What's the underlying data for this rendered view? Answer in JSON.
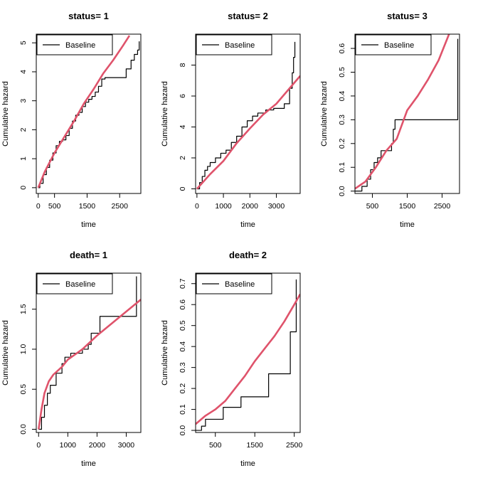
{
  "chart_data": [
    {
      "type": "line",
      "title": "status= 1",
      "xlabel": "time",
      "ylabel": "Cumulative hazard",
      "xlim": [
        -60,
        3150
      ],
      "ylim": [
        -0.2,
        5.3
      ],
      "xticks": [
        0,
        500,
        1500,
        2500
      ],
      "yticks": [
        0,
        1,
        2,
        3,
        4,
        5
      ],
      "legend": {
        "position": "top-left",
        "entries": [
          "Baseline"
        ]
      },
      "series": [
        {
          "name": "Baseline",
          "style": "step",
          "color": "#000000",
          "x": [
            0,
            50,
            150,
            250,
            350,
            450,
            550,
            650,
            750,
            850,
            950,
            1050,
            1150,
            1250,
            1350,
            1450,
            1550,
            1650,
            1750,
            1850,
            1950,
            2050,
            2150,
            2250,
            2450,
            2700,
            2850,
            2950,
            3050,
            3100
          ],
          "y": [
            0,
            0.15,
            0.45,
            0.7,
            0.95,
            1.2,
            1.45,
            1.6,
            1.65,
            1.8,
            2.05,
            2.3,
            2.5,
            2.6,
            2.8,
            2.95,
            3.05,
            3.15,
            3.3,
            3.5,
            3.75,
            3.8,
            3.8,
            3.8,
            3.8,
            4.1,
            4.4,
            4.6,
            4.75,
            5.05
          ]
        },
        {
          "style": "smooth",
          "color": "#DF536B",
          "x": [
            0,
            200,
            500,
            800,
            1100,
            1400,
            1700,
            2000,
            2300,
            2600,
            2800
          ],
          "y": [
            0,
            0.55,
            1.2,
            1.75,
            2.3,
            2.9,
            3.4,
            3.95,
            4.4,
            4.9,
            5.25
          ]
        }
      ]
    },
    {
      "type": "line",
      "title": "status= 2",
      "xlabel": "time",
      "ylabel": "Cumulative hazard",
      "xlim": [
        -50,
        3900
      ],
      "ylim": [
        -0.3,
        10
      ],
      "xticks": [
        0,
        1000,
        2000,
        3000
      ],
      "yticks": [
        0,
        2,
        4,
        6,
        8
      ],
      "legend": {
        "position": "top-left",
        "entries": [
          "Baseline"
        ]
      },
      "series": [
        {
          "name": "Baseline",
          "style": "step",
          "color": "#000000",
          "x": [
            0,
            100,
            200,
            300,
            400,
            500,
            700,
            900,
            1100,
            1300,
            1500,
            1700,
            1900,
            2100,
            2300,
            2600,
            2900,
            3300,
            3500,
            3600,
            3650,
            3700
          ],
          "y": [
            0,
            0.4,
            0.8,
            1.2,
            1.45,
            1.7,
            2.0,
            2.3,
            2.5,
            3.0,
            3.4,
            4.0,
            4.4,
            4.7,
            4.9,
            5.1,
            5.2,
            5.5,
            6.5,
            7.5,
            8.5,
            9.5
          ]
        },
        {
          "style": "smooth",
          "color": "#DF536B",
          "x": [
            0,
            500,
            1000,
            1500,
            2000,
            2500,
            3000,
            3500,
            3900
          ],
          "y": [
            0,
            0.95,
            1.8,
            2.95,
            3.9,
            4.8,
            5.5,
            6.5,
            7.3
          ]
        }
      ]
    },
    {
      "type": "line",
      "title": "status= 3",
      "xlabel": "time",
      "ylabel": "Cumulative hazard",
      "xlim": [
        0,
        3000
      ],
      "ylim": [
        -0.01,
        0.66
      ],
      "xticks": [
        500,
        1500,
        2500
      ],
      "yticks": [
        0.0,
        0.1,
        0.2,
        0.3,
        0.4,
        0.5,
        0.6
      ],
      "legend": {
        "position": "top-left",
        "entries": [
          "Baseline"
        ]
      },
      "series": [
        {
          "name": "Baseline",
          "style": "step",
          "color": "#000000",
          "x": [
            0,
            200,
            350,
            450,
            550,
            650,
            750,
            1050,
            1100,
            1150,
            2950
          ],
          "y": [
            0,
            0.02,
            0.05,
            0.09,
            0.12,
            0.14,
            0.17,
            0.2,
            0.26,
            0.3,
            0.64
          ]
        },
        {
          "style": "smooth",
          "color": "#DF536B",
          "x": [
            0,
            300,
            600,
            900,
            1200,
            1500,
            1800,
            2100,
            2400,
            2700
          ],
          "y": [
            0.01,
            0.04,
            0.1,
            0.17,
            0.22,
            0.34,
            0.4,
            0.47,
            0.55,
            0.66
          ]
        }
      ]
    },
    {
      "type": "line",
      "title": "death= 1",
      "xlabel": "time",
      "ylabel": "Cumulative hazard",
      "xlim": [
        -80,
        3500
      ],
      "ylim": [
        -0.04,
        1.95
      ],
      "xticks": [
        0,
        1000,
        2000,
        3000
      ],
      "yticks": [
        0.0,
        0.5,
        1.0,
        1.5
      ],
      "legend": {
        "position": "top-left",
        "entries": [
          "Baseline"
        ]
      },
      "series": [
        {
          "name": "Baseline",
          "style": "step",
          "color": "#000000",
          "x": [
            0,
            100,
            200,
            300,
            400,
            600,
            800,
            900,
            1100,
            1500,
            1700,
            1800,
            2100,
            3100,
            3350
          ],
          "y": [
            0,
            0.15,
            0.3,
            0.45,
            0.55,
            0.7,
            0.82,
            0.9,
            0.95,
            1.0,
            1.06,
            1.2,
            1.41,
            1.41,
            1.91
          ]
        },
        {
          "style": "smooth",
          "color": "#DF536B",
          "x": [
            0,
            100,
            200,
            350,
            500,
            800,
            1000,
            1500,
            2000,
            2500,
            3000,
            3500
          ],
          "y": [
            0,
            0.25,
            0.45,
            0.6,
            0.68,
            0.78,
            0.87,
            1.0,
            1.17,
            1.32,
            1.47,
            1.62
          ]
        }
      ]
    },
    {
      "type": "line",
      "title": "death= 2",
      "xlabel": "time",
      "ylabel": "Cumulative hazard",
      "xlim": [
        0,
        2650
      ],
      "ylim": [
        -0.01,
        0.75
      ],
      "xticks": [
        500,
        1500,
        2500
      ],
      "yticks": [
        0.0,
        0.1,
        0.2,
        0.3,
        0.4,
        0.5,
        0.6,
        0.7
      ],
      "legend": {
        "position": "top-left",
        "entries": [
          "Baseline"
        ]
      },
      "series": [
        {
          "name": "Baseline",
          "style": "step",
          "color": "#000000",
          "x": [
            0,
            150,
            250,
            700,
            1150,
            1850,
            2400,
            2550
          ],
          "y": [
            0,
            0.02,
            0.053,
            0.11,
            0.16,
            0.27,
            0.47,
            0.72
          ]
        },
        {
          "style": "smooth",
          "color": "#DF536B",
          "x": [
            0,
            250,
            500,
            750,
            1000,
            1250,
            1500,
            1750,
            2000,
            2250,
            2500,
            2650
          ],
          "y": [
            0.03,
            0.07,
            0.1,
            0.14,
            0.2,
            0.26,
            0.33,
            0.39,
            0.45,
            0.52,
            0.6,
            0.65
          ]
        }
      ]
    }
  ]
}
